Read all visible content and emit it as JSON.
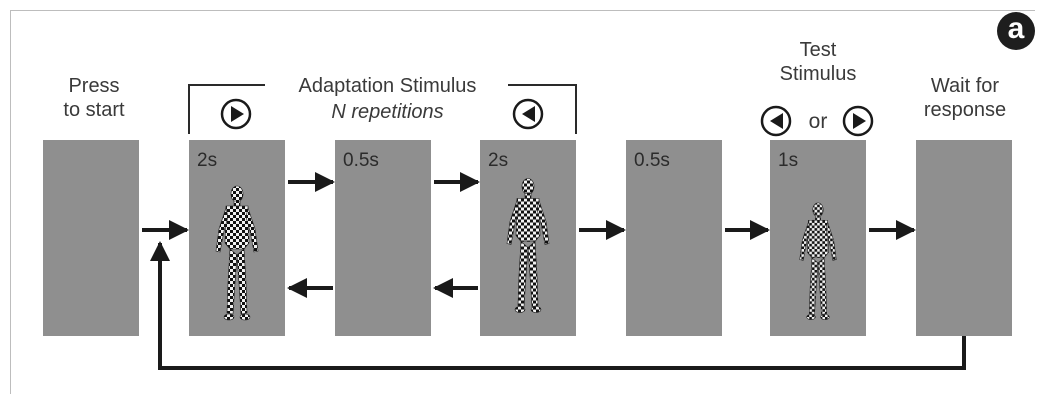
{
  "panel_label": "a",
  "stages": [
    {
      "label_lines": [
        "Press",
        "to start"
      ],
      "duration": ""
    },
    {
      "label_lines": [],
      "duration": "2s"
    },
    {
      "label_lines": [],
      "duration": "0.5s"
    },
    {
      "label_lines": [],
      "duration": "2s"
    },
    {
      "label_lines": [],
      "duration": "0.5s"
    },
    {
      "label_lines": [
        "Test",
        "Stimulus"
      ],
      "duration": "1s"
    },
    {
      "label_lines": [
        "Wait for",
        "response"
      ],
      "duration": ""
    }
  ],
  "adaptation": {
    "title": "Adaptation Stimulus",
    "subtitle": "N repetitions"
  },
  "test_or": "or",
  "colors": {
    "panel": "#8f8f8f",
    "arrow": "#1a1a1a",
    "text": "#3a3a3a"
  },
  "icons": [
    "play-right-icon",
    "play-left-icon",
    "human-figure-icon"
  ]
}
